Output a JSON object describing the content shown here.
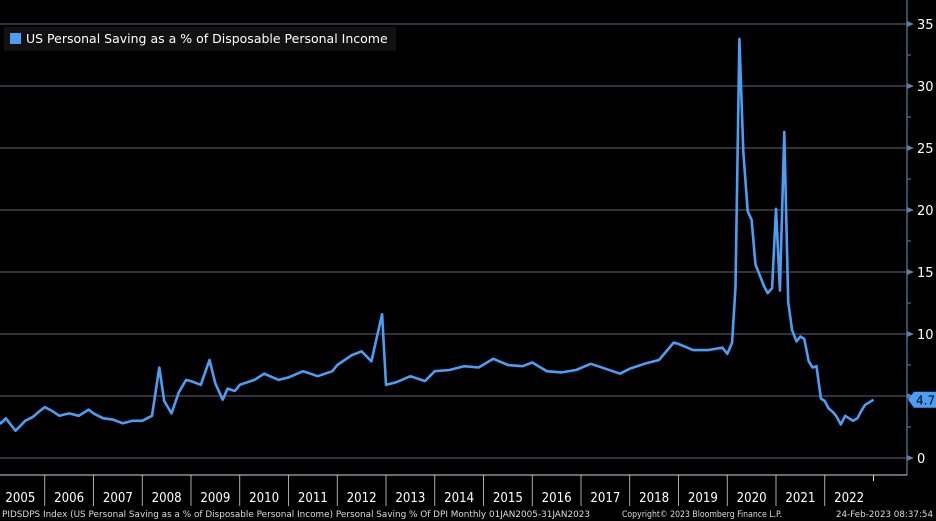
{
  "chart_data": {
    "type": "line",
    "title": "",
    "legend": [
      {
        "label": "US Personal Saving as a % of Disposable Personal Income",
        "color": "#4a9ff5"
      }
    ],
    "legend_placement": "top-left",
    "xlabel": "",
    "ylabel": "",
    "ylim": [
      0,
      36
    ],
    "yticks": [
      0,
      5,
      10,
      15,
      20,
      25,
      30,
      35
    ],
    "xticks": [
      "2005",
      "2006",
      "2007",
      "2008",
      "2009",
      "2010",
      "2011",
      "2012",
      "2013",
      "2014",
      "2015",
      "2016",
      "2017",
      "2018",
      "2019",
      "2020",
      "2021",
      "2022"
    ],
    "xlim": [
      2005.0,
      2023.1
    ],
    "last_value_label": "4.7",
    "series": [
      {
        "name": "US Personal Saving as a % of Disposable Personal Income",
        "color": "#4a9ff5",
        "x": [
          2005.0,
          2005.1,
          2005.2,
          2005.3,
          2005.4,
          2005.5,
          2005.6,
          2005.75,
          2005.9,
          2006.0,
          2006.15,
          2006.3,
          2006.5,
          2006.7,
          2006.9,
          2007.0,
          2007.2,
          2007.4,
          2007.6,
          2007.8,
          2008.0,
          2008.2,
          2008.35,
          2008.45,
          2008.6,
          2008.75,
          2008.9,
          2009.0,
          2009.2,
          2009.38,
          2009.5,
          2009.65,
          2009.75,
          2009.9,
          2010.0,
          2010.3,
          2010.5,
          2010.8,
          2011.0,
          2011.3,
          2011.6,
          2011.9,
          2012.0,
          2012.3,
          2012.5,
          2012.7,
          2012.92,
          2013.0,
          2013.2,
          2013.5,
          2013.8,
          2014.0,
          2014.3,
          2014.6,
          2014.9,
          2015.2,
          2015.5,
          2015.8,
          2016.0,
          2016.3,
          2016.6,
          2016.9,
          2017.2,
          2017.5,
          2017.8,
          2018.0,
          2018.3,
          2018.6,
          2018.9,
          2019.0,
          2019.3,
          2019.6,
          2019.9,
          2020.0,
          2020.1,
          2020.17,
          2020.25,
          2020.33,
          2020.42,
          2020.5,
          2020.58,
          2020.67,
          2020.75,
          2020.83,
          2020.92,
          2021.0,
          2021.08,
          2021.17,
          2021.25,
          2021.33,
          2021.42,
          2021.5,
          2021.58,
          2021.67,
          2021.75,
          2021.83,
          2021.92,
          2022.0,
          2022.08,
          2022.17,
          2022.25,
          2022.33,
          2022.42,
          2022.5,
          2022.58,
          2022.67,
          2022.75,
          2022.83,
          2022.92,
          2023.0
        ],
        "values": [
          3.1,
          2.8,
          3.2,
          2.7,
          2.2,
          2.6,
          3.0,
          3.3,
          3.8,
          4.1,
          3.8,
          3.4,
          3.6,
          3.4,
          3.9,
          3.6,
          3.2,
          3.1,
          2.8,
          3.0,
          3.0,
          3.4,
          7.3,
          4.6,
          3.6,
          5.3,
          6.3,
          6.2,
          5.9,
          7.9,
          6.0,
          4.7,
          5.6,
          5.4,
          5.9,
          6.3,
          6.8,
          6.3,
          6.5,
          7.0,
          6.6,
          7.0,
          7.5,
          8.3,
          8.6,
          7.8,
          11.6,
          5.9,
          6.1,
          6.6,
          6.2,
          7.0,
          7.1,
          7.4,
          7.3,
          8.0,
          7.5,
          7.4,
          7.7,
          7.0,
          6.9,
          7.1,
          7.6,
          7.2,
          6.8,
          7.2,
          7.6,
          7.9,
          9.3,
          9.2,
          8.7,
          8.7,
          8.9,
          8.4,
          9.3,
          13.8,
          33.8,
          24.7,
          19.9,
          19.2,
          15.6,
          14.7,
          13.9,
          13.3,
          13.7,
          20.1,
          13.5,
          26.3,
          12.6,
          10.3,
          9.4,
          9.8,
          9.6,
          7.8,
          7.3,
          7.4,
          4.8,
          4.6,
          4.0,
          3.7,
          3.3,
          2.7,
          3.4,
          3.2,
          3.0,
          3.2,
          3.8,
          4.3,
          4.5,
          4.7
        ]
      }
    ]
  },
  "footer": {
    "description": "PIDSDPS Index (US Personal Saving as a % of Disposable Personal Income) Personal Saving % Of DPI  Monthly 01JAN2005-31JAN2023",
    "copyright": "Copyright© 2023 Bloomberg Finance L.P.",
    "timestamp": "24-Feb-2023 08:37:54"
  }
}
